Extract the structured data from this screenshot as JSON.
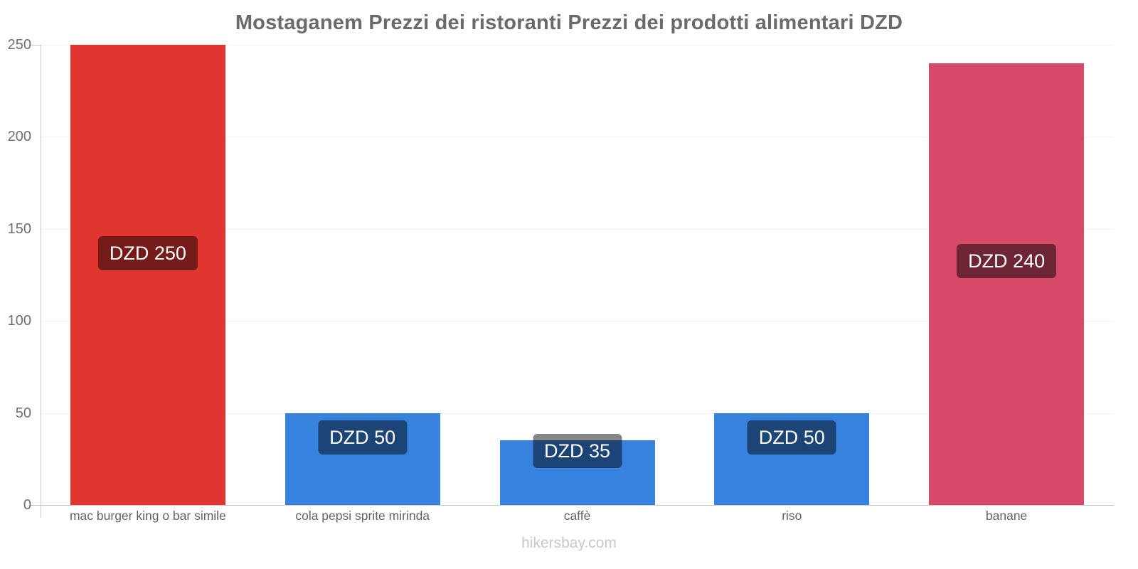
{
  "chart_data": {
    "type": "bar",
    "title": "Mostaganem Prezzi dei ristoranti Prezzi dei prodotti alimentari DZD",
    "categories": [
      "mac burger king o bar simile",
      "cola pepsi sprite mirinda",
      "caffè",
      "riso",
      "banane"
    ],
    "values": [
      250,
      50,
      35,
      50,
      240
    ],
    "data_labels": [
      "DZD 250",
      "DZD 50",
      "DZD 35",
      "DZD 50",
      "DZD 240"
    ],
    "bar_colors": [
      "#e03531",
      "#3782de",
      "#3782de",
      "#3782de",
      "#d44a68"
    ],
    "currency": "DZD",
    "xlabel": "",
    "ylabel": "",
    "ylim": [
      0,
      250
    ],
    "yticks": [
      0,
      50,
      100,
      150,
      200,
      250
    ],
    "grid": true,
    "legend": "none",
    "colors": {
      "value_label_text": "#ffffff",
      "value_label_bg": "rgba(0,0,0,0.48)",
      "axis_line": "#c9c9c9",
      "gridline": "#f2f2f2",
      "title_text": "#6a6a6a",
      "tick_text": "#6f6f6f",
      "category_text": "#636363"
    }
  },
  "footer": {
    "text": "hikersbay.com"
  }
}
